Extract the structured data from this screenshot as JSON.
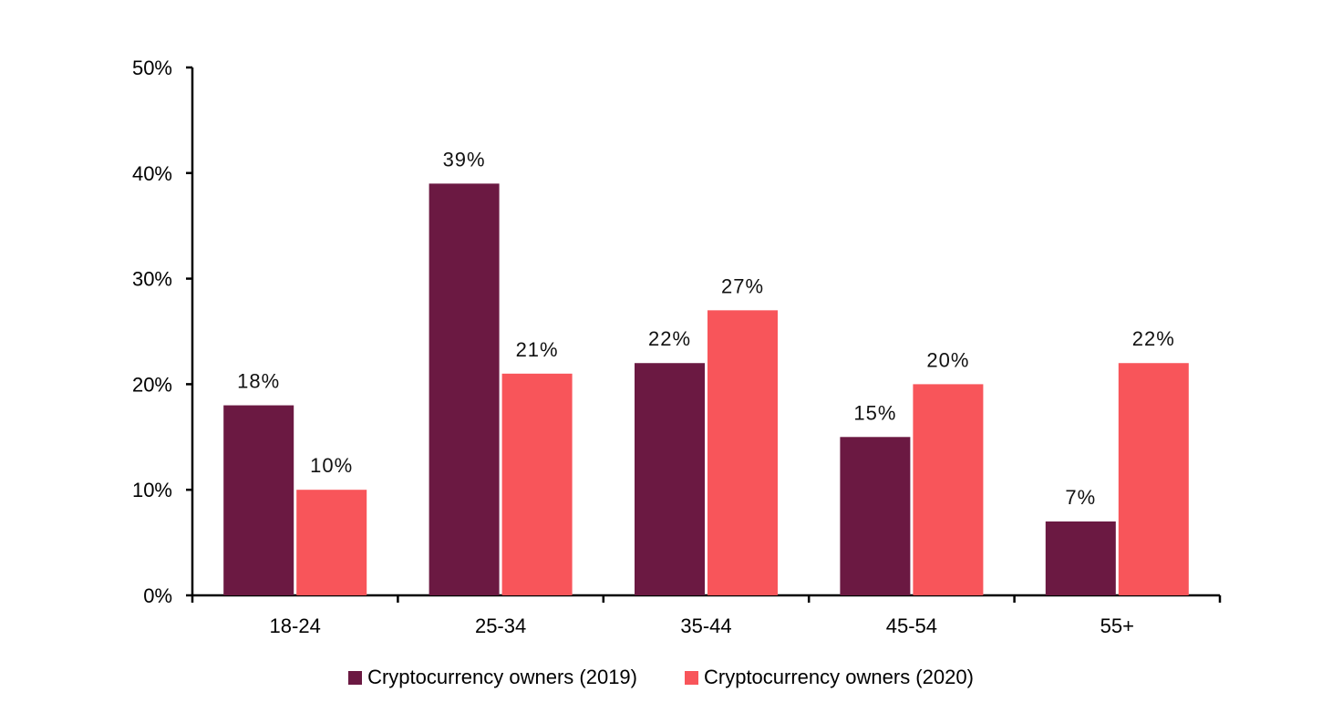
{
  "chart_data": {
    "type": "bar",
    "categories": [
      "18-24",
      "25-34",
      "35-44",
      "45-54",
      "55+"
    ],
    "series": [
      {
        "name": "Cryptocurrency owners  (2019)",
        "values": [
          18,
          39,
          22,
          15,
          7
        ],
        "labels": [
          "18%",
          "39%",
          "22%",
          "15%",
          "7%"
        ],
        "color": "#6B1942"
      },
      {
        "name": "Cryptocurrency owners  (2020)",
        "values": [
          10,
          21,
          27,
          20,
          22
        ],
        "labels": [
          "10%",
          "21%",
          "27%",
          "20%",
          "22%"
        ],
        "color": "#F8555A"
      }
    ],
    "yticks": [
      "0%",
      "10%",
      "20%",
      "30%",
      "40%",
      "50%"
    ],
    "ylim": [
      0,
      50
    ],
    "grid": false,
    "legend_position": "bottom"
  }
}
